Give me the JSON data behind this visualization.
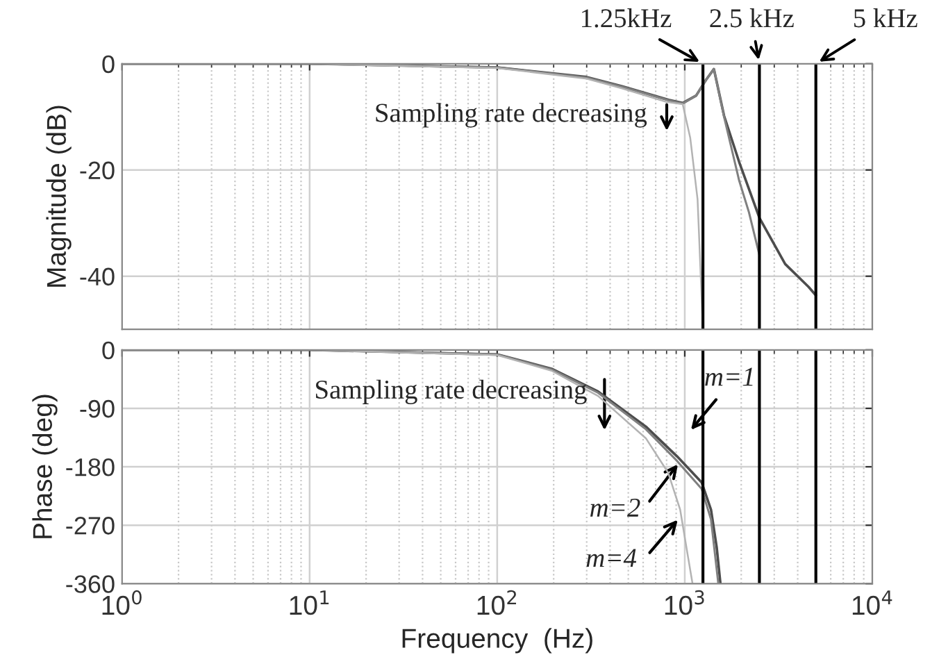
{
  "chart_data": [
    {
      "type": "line",
      "ylabel": "Magnitude (dB)",
      "log": "x",
      "grid": true,
      "tick_labels": "y",
      "xlim": [
        1,
        10000
      ],
      "xticks": [
        {
          "value": 1,
          "label": null
        },
        {
          "value": 10,
          "label": null
        },
        {
          "value": 100,
          "label": null
        },
        {
          "value": 1000,
          "label": null
        },
        {
          "value": 10000,
          "label": null
        }
      ],
      "ylim": [
        -50,
        0
      ],
      "yticks": [
        -40,
        -20,
        0
      ],
      "series": [
        {
          "color": "#4d4d4d",
          "x": [
            1,
            10,
            100,
            300,
            460,
            820,
            975,
            1150,
            1300,
            1430,
            1620,
            1950,
            2500,
            3430,
            4570,
            5000
          ],
          "values": [
            0,
            0,
            -0.7,
            -2.5,
            -4.2,
            -6.8,
            -7.4,
            -6,
            -3,
            -1,
            -9.8,
            -18.5,
            -29,
            -37.7,
            -42,
            -43.6
          ]
        },
        {
          "color": "#808080",
          "x": [
            1,
            10,
            100,
            300,
            460,
            820,
            975,
            1150,
            1300,
            1430,
            1620,
            1950,
            2200,
            2500
          ],
          "values": [
            0,
            0,
            -0.7,
            -2.6,
            -4.3,
            -6.9,
            -7.5,
            -6,
            -3,
            -1,
            -10,
            -22,
            -28,
            -36
          ]
        },
        {
          "color": "#b3b3b3",
          "x": [
            1,
            10,
            100,
            300,
            460,
            800,
            975,
            1070,
            1170,
            1250
          ],
          "values": [
            0,
            0,
            -0.8,
            -2.8,
            -4.6,
            -7.2,
            -7.6,
            -14,
            -25.5,
            -50
          ]
        }
      ],
      "ref_lines": [
        {
          "axis": "x",
          "value": 1250,
          "label": "1.25kHz",
          "color": "#000000"
        },
        {
          "axis": "x",
          "value": 2500,
          "label": "2.5 kHz",
          "color": "#000000"
        },
        {
          "axis": "x",
          "value": 5000,
          "label": "5 kHz",
          "color": "#000000"
        }
      ],
      "annotations": [
        "Sampling rate decreasing"
      ]
    },
    {
      "type": "line",
      "xlabel": "Frequency  (Hz)",
      "ylabel": "Phase (deg)",
      "log": "x",
      "grid": true,
      "xlim": [
        1,
        10000
      ],
      "xticks": [
        {
          "value": 1,
          "label": "10$^{0}$"
        },
        {
          "value": 10,
          "label": "10$^{1}$"
        },
        {
          "value": 100,
          "label": "10$^{2}$"
        },
        {
          "value": 1000,
          "label": "10$^{3}$"
        },
        {
          "value": 10000,
          "label": "10$^{4}$"
        }
      ],
      "ylim": [
        -360,
        0
      ],
      "yticks": [
        -360,
        -270,
        -180,
        -90,
        0
      ],
      "series": [
        {
          "color": "#4d4d4d",
          "x": [
            1,
            10,
            100,
            195,
            345,
            620,
            910,
            1230,
            1380,
            1480,
            1550
          ],
          "values": [
            0,
            0,
            -7,
            -29,
            -64,
            -118,
            -164,
            -204,
            -246,
            -304,
            -360
          ]
        },
        {
          "color": "#808080",
          "x": [
            1,
            10,
            100,
            195,
            345,
            620,
            910,
            1230,
            1380,
            1510
          ],
          "values": [
            0,
            0,
            -7,
            -30,
            -66,
            -122,
            -171,
            -214,
            -261,
            -360
          ]
        },
        {
          "color": "#b3b3b3",
          "x": [
            1,
            10,
            100,
            195,
            345,
            620,
            815,
            945,
            1030,
            1100
          ],
          "values": [
            0,
            0,
            -8,
            -32,
            -71,
            -136,
            -189,
            -246,
            -311,
            -360
          ]
        }
      ],
      "ref_lines": [
        {
          "axis": "x",
          "value": 1250,
          "color": "#000000"
        },
        {
          "axis": "x",
          "value": 2500,
          "color": "#000000"
        },
        {
          "axis": "x",
          "value": 5000,
          "color": "#000000"
        }
      ],
      "annotations": [
        "Sampling rate decreasing",
        "m=1",
        "m=2",
        "m=4"
      ]
    }
  ]
}
